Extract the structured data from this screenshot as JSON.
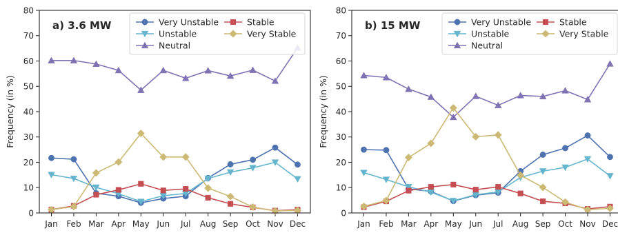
{
  "chart_data": [
    {
      "type": "line",
      "title": "a) 3.6 MW",
      "xlabel": "",
      "ylabel": "Frequency (in %)",
      "categories": [
        "Jan",
        "Feb",
        "Mar",
        "Apr",
        "May",
        "Jun",
        "Jul",
        "Aug",
        "Sep",
        "Oct",
        "Nov",
        "Dec"
      ],
      "ylim": [
        0,
        80
      ],
      "yticks": [
        0,
        10,
        20,
        30,
        40,
        50,
        60,
        70,
        80
      ],
      "grid": false,
      "legend_position": "top-right",
      "series": [
        {
          "name": "Very Unstable",
          "color": "#4c72b0",
          "marker": "circle",
          "values": [
            21.7,
            21.2,
            7.8,
            6.6,
            4.0,
            5.7,
            6.6,
            13.8,
            19.2,
            21.0,
            25.8,
            19.1
          ]
        },
        {
          "name": "Unstable",
          "color": "#64b5cd",
          "marker": "triangle-down",
          "values": [
            15.1,
            13.6,
            10.1,
            7.6,
            4.5,
            6.8,
            7.7,
            13.6,
            16.1,
            17.8,
            20.0,
            13.4
          ]
        },
        {
          "name": "Neutral",
          "color": "#8172b3",
          "marker": "triangle-up",
          "values": [
            60.2,
            60.2,
            58.8,
            56.3,
            48.5,
            56.3,
            53.2,
            56.2,
            54.1,
            56.4,
            52.1,
            65.2
          ]
        },
        {
          "name": "Stable",
          "color": "#c44e52",
          "marker": "square",
          "values": [
            1.3,
            2.8,
            7.2,
            9.1,
            11.5,
            8.9,
            9.5,
            6.0,
            3.6,
            2.2,
            0.9,
            1.3
          ]
        },
        {
          "name": "Very Stable",
          "color": "#ccb974",
          "marker": "diamond",
          "values": [
            1.3,
            2.5,
            15.8,
            20.1,
            31.4,
            22.1,
            22.1,
            9.8,
            6.5,
            2.3,
            0.8,
            1.0
          ]
        }
      ]
    },
    {
      "type": "line",
      "title": "b) 15 MW",
      "xlabel": "",
      "ylabel": "Frequency (in %)",
      "categories": [
        "Jan",
        "Feb",
        "Mar",
        "Apr",
        "May",
        "Jun",
        "Jul",
        "Aug",
        "Sep",
        "Oct",
        "Nov",
        "Dec"
      ],
      "ylim": [
        0,
        80
      ],
      "yticks": [
        0,
        10,
        20,
        30,
        40,
        50,
        60,
        70,
        80
      ],
      "grid": false,
      "legend_position": "top-right",
      "series": [
        {
          "name": "Very Unstable",
          "color": "#4c72b0",
          "marker": "circle",
          "values": [
            25.0,
            24.8,
            9.5,
            8.5,
            4.7,
            7.0,
            8.0,
            16.5,
            23.0,
            25.6,
            30.6,
            22.1
          ]
        },
        {
          "name": "Unstable",
          "color": "#64b5cd",
          "marker": "triangle-down",
          "values": [
            15.9,
            13.2,
            10.3,
            8.2,
            4.8,
            7.2,
            8.3,
            14.0,
            16.5,
            18.0,
            21.3,
            14.6
          ]
        },
        {
          "name": "Neutral",
          "color": "#8172b3",
          "marker": "triangle-up",
          "values": [
            54.3,
            53.5,
            48.9,
            45.8,
            37.8,
            46.1,
            42.5,
            46.4,
            46.0,
            48.3,
            44.8,
            58.9
          ]
        },
        {
          "name": "Stable",
          "color": "#c44e52",
          "marker": "square",
          "values": [
            2.3,
            4.6,
            8.8,
            10.3,
            11.2,
            9.2,
            10.3,
            7.7,
            4.6,
            3.8,
            1.6,
            2.5
          ]
        },
        {
          "name": "Very Stable",
          "color": "#ccb974",
          "marker": "diamond",
          "values": [
            2.6,
            4.9,
            21.9,
            27.5,
            41.5,
            30.1,
            30.8,
            14.9,
            10.1,
            4.3,
            1.3,
            1.8
          ]
        }
      ]
    }
  ],
  "legend_layout": [
    [
      "Very Unstable",
      "Stable"
    ],
    [
      "Unstable",
      "Very Stable"
    ],
    [
      "Neutral"
    ]
  ]
}
